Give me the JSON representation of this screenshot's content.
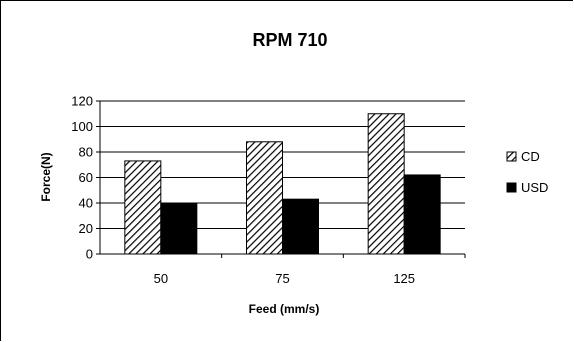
{
  "chart_data": {
    "type": "bar",
    "title": "RPM  710",
    "xlabel": "Feed (mm/s)",
    "ylabel": "Force(N)",
    "categories": [
      "50",
      "75",
      "125"
    ],
    "series": [
      {
        "name": "CD",
        "values": [
          73,
          88,
          110
        ],
        "pattern": "diagonal-hatch"
      },
      {
        "name": "USD",
        "values": [
          40,
          43,
          62
        ],
        "color": "#000000"
      }
    ],
    "ylim": [
      0,
      120
    ],
    "yticks": [
      "0",
      "20",
      "40",
      "60",
      "80",
      "100",
      "120"
    ],
    "grid": true,
    "legend_position": "right"
  }
}
